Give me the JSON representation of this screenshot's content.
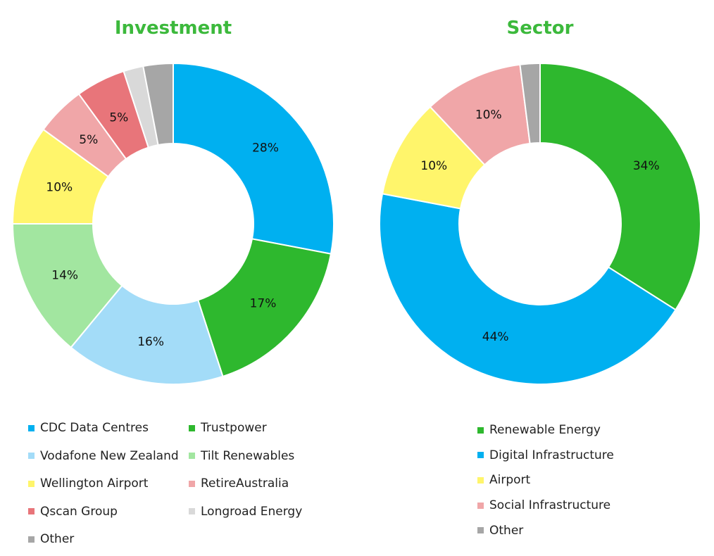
{
  "colors": {
    "title": "#3CB93C"
  },
  "chart_data": [
    {
      "type": "pie",
      "donut": true,
      "title": "Investment",
      "slices": [
        {
          "label": "CDC Data Centres",
          "value": 28,
          "data_label": "28%",
          "color": "#00B0F0"
        },
        {
          "label": "Trustpower",
          "value": 17,
          "data_label": "17%",
          "color": "#2EB82E"
        },
        {
          "label": "Vodafone New Zealand",
          "value": 16,
          "data_label": "16%",
          "color": "#A3DCF8"
        },
        {
          "label": "Tilt Renewables",
          "value": 14,
          "data_label": "14%",
          "color": "#A2E6A0"
        },
        {
          "label": "Wellington Airport",
          "value": 10,
          "data_label": "10%",
          "color": "#FFF56B"
        },
        {
          "label": "RetireAustralia",
          "value": 5,
          "data_label": "5%",
          "color": "#F0A6A8"
        },
        {
          "label": "Qscan Group",
          "value": 5,
          "data_label": "5%",
          "color": "#E8757A"
        },
        {
          "label": "Longroad Energy",
          "value": 2,
          "data_label": "",
          "color": "#D9D9D9"
        },
        {
          "label": "Other",
          "value": 3,
          "data_label": "",
          "color": "#A6A6A6"
        }
      ]
    },
    {
      "type": "pie",
      "donut": true,
      "title": "Sector",
      "slices": [
        {
          "label": "Renewable Energy",
          "value": 34,
          "data_label": "34%",
          "color": "#2EB82E"
        },
        {
          "label": "Digital Infrastructure",
          "value": 44,
          "data_label": "44%",
          "color": "#00B0F0"
        },
        {
          "label": "Airport",
          "value": 10,
          "data_label": "10%",
          "color": "#FFF56B"
        },
        {
          "label": "Social Infrastructure",
          "value": 10,
          "data_label": "10%",
          "color": "#F0A6A8"
        },
        {
          "label": "Other",
          "value": 2,
          "data_label": "",
          "color": "#A6A6A6"
        }
      ]
    }
  ]
}
